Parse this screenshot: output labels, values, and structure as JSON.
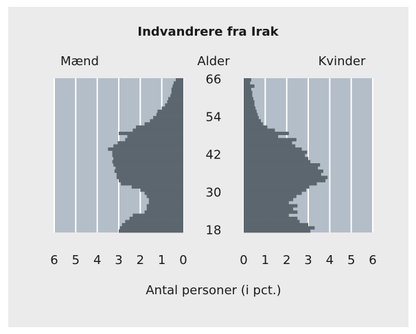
{
  "chart_data": {
    "type": "pyramid",
    "title": "Indvandrere fra Irak",
    "center_label": "Alder",
    "xlabel": "Antal personer (i pct.)",
    "categories": [
      "18",
      null,
      null,
      null,
      null,
      null,
      null,
      null,
      null,
      null,
      null,
      null,
      "30",
      null,
      null,
      null,
      null,
      null,
      null,
      null,
      null,
      null,
      null,
      null,
      "42",
      null,
      null,
      null,
      null,
      null,
      null,
      null,
      null,
      null,
      null,
      null,
      "54",
      null,
      null,
      null,
      null,
      null,
      null,
      null,
      null,
      null,
      null,
      null,
      "66"
    ],
    "series": [
      {
        "name": "Mænd",
        "color": "#5b666e",
        "values": [
          3.0,
          2.95,
          2.85,
          2.7,
          2.5,
          2.35,
          1.8,
          1.7,
          1.7,
          1.6,
          1.6,
          1.7,
          1.8,
          2.0,
          2.4,
          2.9,
          3.0,
          3.1,
          3.1,
          3.2,
          3.15,
          3.25,
          3.3,
          3.25,
          3.3,
          3.3,
          3.5,
          3.25,
          3.05,
          2.7,
          2.6,
          3.0,
          2.35,
          2.2,
          1.8,
          1.55,
          1.4,
          1.25,
          1.2,
          1.0,
          0.85,
          0.75,
          0.7,
          0.6,
          0.55,
          0.55,
          0.5,
          0.45,
          0.35
        ]
      },
      {
        "name": "Kvinder",
        "color": "#5b666e",
        "values": [
          3.1,
          3.3,
          3.0,
          2.6,
          2.5,
          2.1,
          2.5,
          2.3,
          2.5,
          2.1,
          2.3,
          2.45,
          2.7,
          2.9,
          3.05,
          3.4,
          3.8,
          3.9,
          3.6,
          3.7,
          3.45,
          3.55,
          3.1,
          3.0,
          2.85,
          2.95,
          2.7,
          2.4,
          2.25,
          2.45,
          1.6,
          2.1,
          1.45,
          1.1,
          0.9,
          0.8,
          0.7,
          0.65,
          0.6,
          0.55,
          0.5,
          0.5,
          0.45,
          0.4,
          0.4,
          0.35,
          0.5,
          0.3,
          0.35
        ]
      }
    ],
    "xlim": [
      0,
      6
    ],
    "xticks": [
      0,
      1,
      2,
      3,
      4,
      5,
      6
    ],
    "grid": true,
    "panel_color": "#b4bec9",
    "background": "#ebebeb"
  }
}
